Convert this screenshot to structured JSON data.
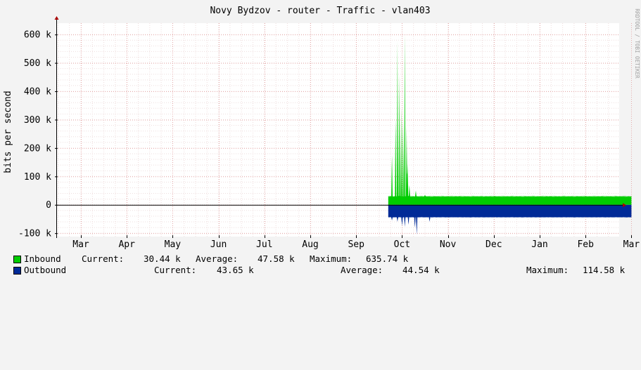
{
  "chart_data": {
    "type": "area",
    "title": "Novy Bydzov - router - Traffic - vlan403",
    "ylabel": "bits per second",
    "watermark": "RRDTOOL / TOBI OETIKER",
    "xlabels": [
      "Mar",
      "Apr",
      "May",
      "Jun",
      "Jul",
      "Aug",
      "Sep",
      "Oct",
      "Nov",
      "Dec",
      "Jan",
      "Feb",
      "Mar"
    ],
    "x_months_index_range": [
      0,
      12
    ],
    "yticks": [
      -100,
      0,
      100,
      200,
      300,
      400,
      500,
      600
    ],
    "ytick_labels": [
      "-100 k",
      "0",
      "100 k",
      "200 k",
      "300 k",
      "400 k",
      "500 k",
      "600 k"
    ],
    "ylim": [
      -112,
      640
    ],
    "y_unit": "k",
    "grid": true,
    "data_start_month_index": 6.7,
    "series": [
      {
        "name": "Inbound",
        "color": "#00cc00",
        "baseline_k": 30,
        "spikes_k": [
          [
            6.78,
            175
          ],
          [
            6.86,
            305
          ],
          [
            6.9,
            575
          ],
          [
            6.94,
            460
          ],
          [
            6.98,
            340
          ],
          [
            7.02,
            300
          ],
          [
            7.06,
            600
          ],
          [
            7.1,
            280
          ],
          [
            7.12,
            145
          ],
          [
            7.16,
            70
          ],
          [
            7.3,
            50
          ],
          [
            7.5,
            35
          ]
        ]
      },
      {
        "name": "Outbound",
        "color": "#002a97",
        "baseline_k": -44,
        "spikes_k": [
          [
            6.78,
            -55
          ],
          [
            6.9,
            -60
          ],
          [
            7.0,
            -75
          ],
          [
            7.06,
            -78
          ],
          [
            7.14,
            -70
          ],
          [
            7.28,
            -80
          ],
          [
            7.32,
            -105
          ],
          [
            7.6,
            -60
          ]
        ]
      }
    ],
    "legend": {
      "inbound": {
        "name": "Inbound",
        "current_label": "Current:",
        "current": "30.44 k",
        "average_label": "Average:",
        "average": "47.58 k",
        "maximum_label": "Maximum:",
        "maximum": "635.74 k"
      },
      "outbound": {
        "name": "Outbound",
        "current_label": "Current:",
        "current": "43.65 k",
        "average_label": "Average:",
        "average": "44.54 k",
        "maximum_label": "Maximum:",
        "maximum": "114.58 k"
      }
    },
    "colors": {
      "background": "#f3f3f3",
      "plot_bg": "#ffffff",
      "grid": "#e5aaaa",
      "axis": "#000000"
    }
  }
}
